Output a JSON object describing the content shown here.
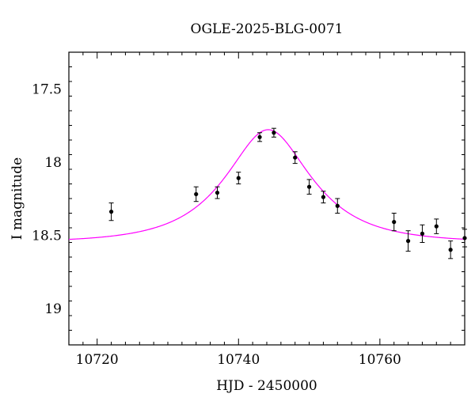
{
  "chart_data": {
    "type": "scatter",
    "title": "OGLE-2025-BLG-0071",
    "xlabel": "HJD - 2450000",
    "ylabel": "I magnitude",
    "xlim": [
      10716,
      10772
    ],
    "ylim": [
      17.25,
      19.25
    ],
    "y_inverted": true,
    "grid": false,
    "x_ticks": [
      10720,
      10740,
      10760
    ],
    "x_tick_labels": [
      "10720",
      "10740",
      "10760"
    ],
    "y_ticks": [
      17.5,
      18,
      18.5,
      19
    ],
    "y_tick_labels": [
      "17.5",
      "18",
      "18.5",
      "19"
    ],
    "colors": {
      "model": "#ff00ff",
      "points": "#000000"
    },
    "series": [
      {
        "type": "errorbar",
        "x": [
          10722.0,
          10734.0,
          10737.0,
          10740.0,
          10743.0,
          10745.0,
          10748.0,
          10750.0,
          10752.0,
          10754.0,
          10762.0,
          10764.0,
          10766.0,
          10768.0,
          10770.0,
          10772.0
        ],
        "y": [
          18.34,
          18.22,
          18.21,
          18.11,
          17.83,
          17.8,
          17.97,
          18.17,
          18.24,
          18.3,
          18.41,
          18.54,
          18.49,
          18.44,
          18.6,
          18.52
        ],
        "err": [
          0.06,
          0.05,
          0.04,
          0.04,
          0.03,
          0.03,
          0.04,
          0.05,
          0.04,
          0.05,
          0.06,
          0.07,
          0.06,
          0.05,
          0.06,
          0.06
        ]
      },
      {
        "type": "line",
        "model": "microlensing-fit",
        "params": {
          "t0": 10744.2,
          "tE": 10.0,
          "u0": 0.545,
          "I_base": 18.55
        }
      }
    ]
  }
}
